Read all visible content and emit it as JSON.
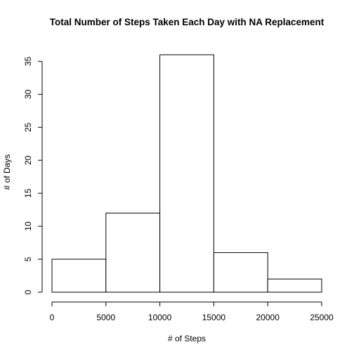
{
  "chart_data": {
    "type": "bar",
    "title": "Total Number of Steps Taken Each Day with NA Replacement",
    "xlabel": "# of Steps",
    "ylabel": "# of Days",
    "bins": [
      {
        "from": 0,
        "to": 5000,
        "count": 5
      },
      {
        "from": 5000,
        "to": 10000,
        "count": 12
      },
      {
        "from": 10000,
        "to": 15000,
        "count": 36
      },
      {
        "from": 15000,
        "to": 20000,
        "count": 6
      },
      {
        "from": 20000,
        "to": 25000,
        "count": 2
      }
    ],
    "xlim": [
      0,
      25000
    ],
    "ylim": [
      0,
      36
    ],
    "x_ticks": [
      "0",
      "5000",
      "10000",
      "15000",
      "20000",
      "25000"
    ],
    "y_ticks": [
      "0",
      "5",
      "10",
      "15",
      "20",
      "25",
      "30",
      "35"
    ],
    "grid": false,
    "legend": "none",
    "bar_fill": "#ffffff",
    "bar_stroke": "#000000"
  }
}
